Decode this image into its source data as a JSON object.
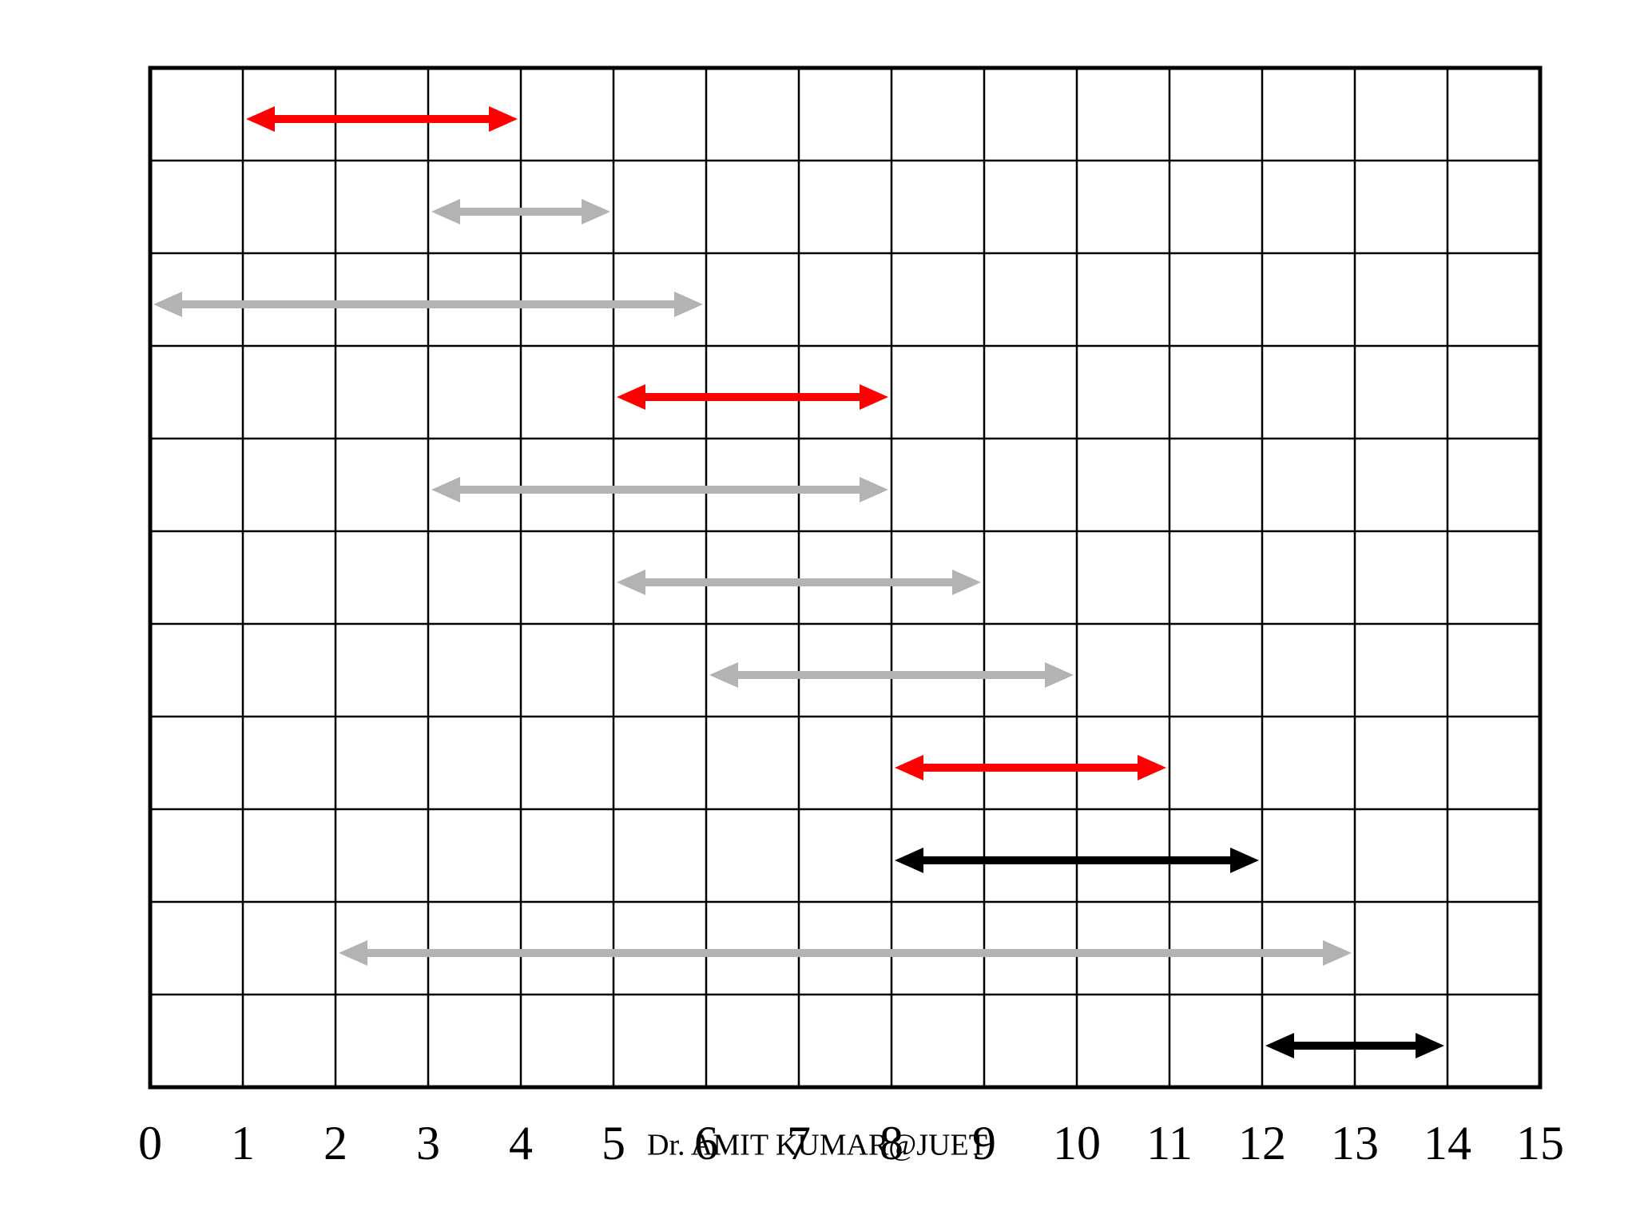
{
  "chart_data": {
    "type": "interval",
    "starts": [
      1,
      3,
      0,
      5,
      3,
      5,
      6,
      8,
      8,
      2,
      12
    ],
    "ends": [
      4,
      5,
      6,
      8,
      8,
      9,
      10,
      11,
      12,
      13,
      14
    ],
    "colors": [
      "#ff0000",
      "#b3b3b3",
      "#b3b3b3",
      "#ff0000",
      "#b3b3b3",
      "#b3b3b3",
      "#b3b3b3",
      "#ff0000",
      "#000000",
      "#b3b3b3",
      "#000000"
    ],
    "xlim": [
      0,
      15
    ],
    "xticks": [
      0,
      1,
      2,
      3,
      4,
      5,
      6,
      7,
      8,
      9,
      10,
      11,
      12,
      13,
      14,
      15
    ],
    "grid": true,
    "watermark": "Dr. AMIT KUMAR@JUET"
  }
}
